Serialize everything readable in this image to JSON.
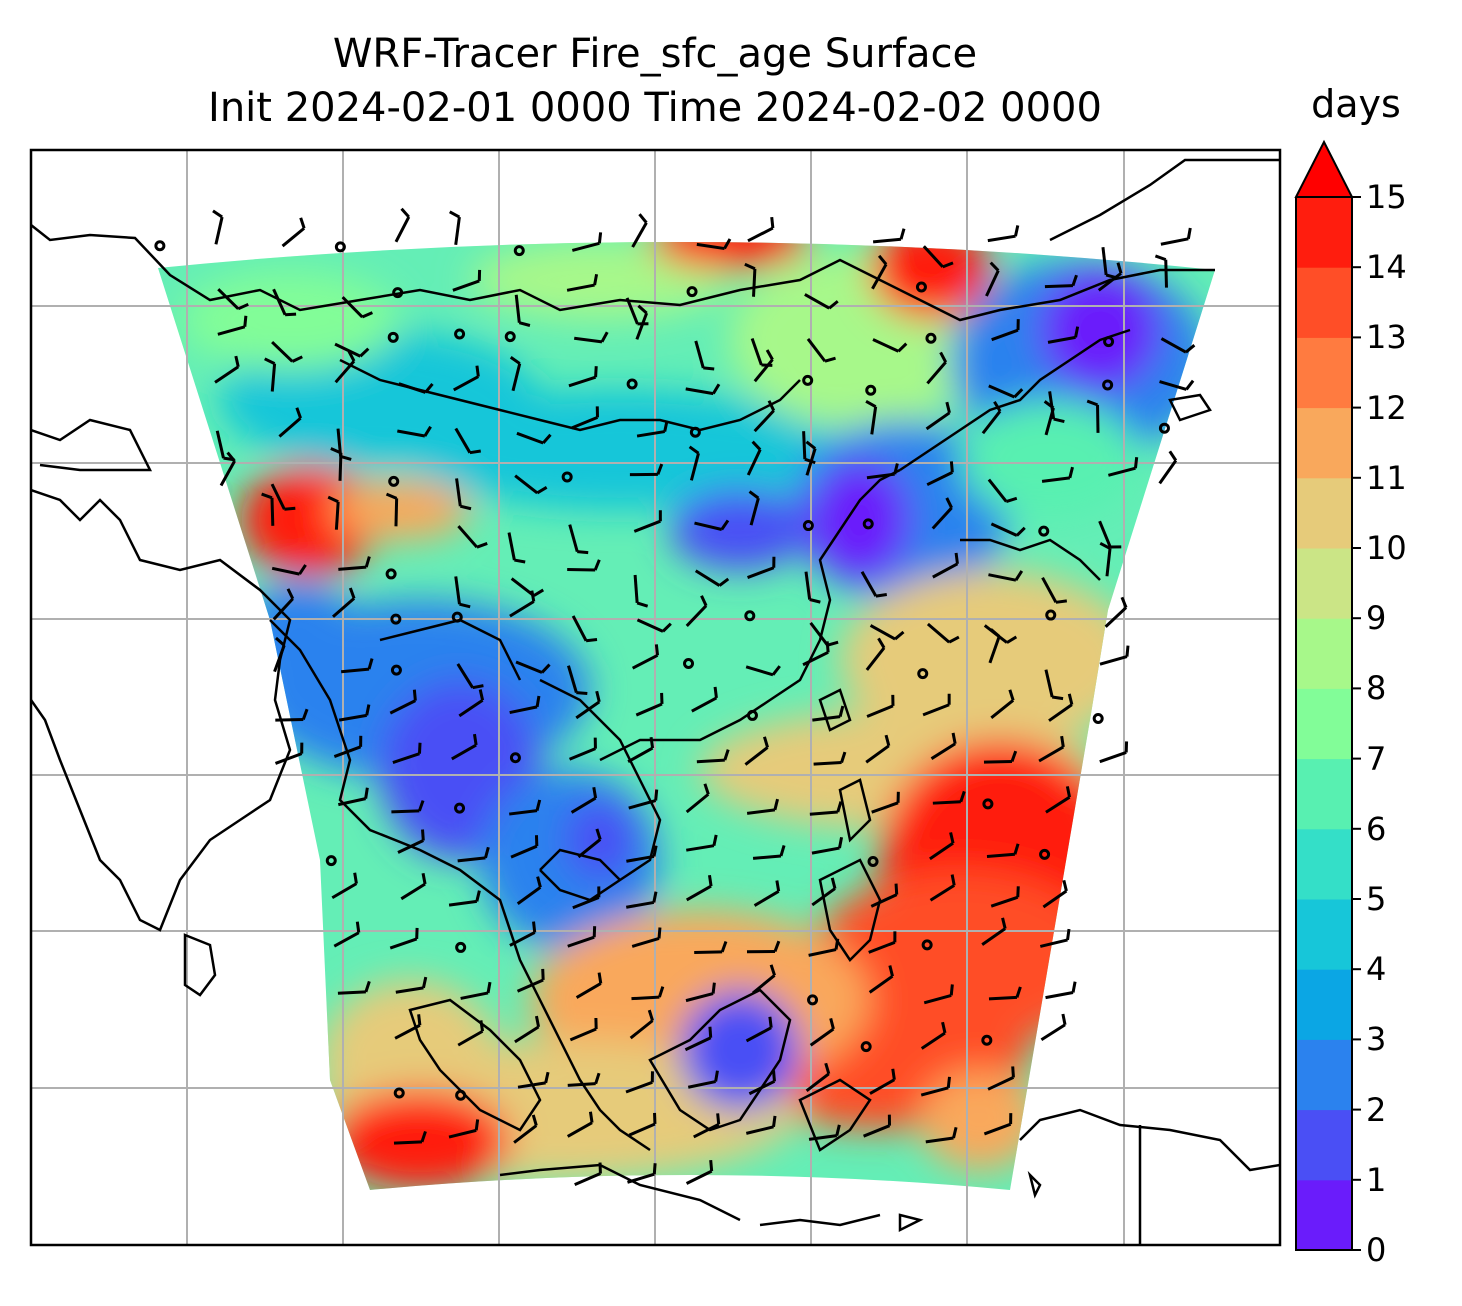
{
  "title": {
    "line1": "WRF-Tracer Fire_sfc_age Surface",
    "line2": "Init 2024-02-01 0000 Time 2024-02-02 0000"
  },
  "colorbar": {
    "unit": "days",
    "min": 0,
    "max": 15,
    "extend": "max",
    "ticks": [
      "0",
      "1",
      "2",
      "3",
      "4",
      "5",
      "6",
      "7",
      "8",
      "9",
      "10",
      "11",
      "12",
      "13",
      "14",
      "15"
    ],
    "colors": [
      "#6a1cfb",
      "#4a4ff5",
      "#2b82ee",
      "#0ba6e4",
      "#17c6d9",
      "#34dfc8",
      "#58f0b1",
      "#82fd98",
      "#a7f88a",
      "#cbe586",
      "#e6cb7a",
      "#f9a85c",
      "#ff7b40",
      "#ff4e27",
      "#ff1d0e"
    ],
    "over_color": "#ff0000"
  },
  "map": {
    "gridlines": true,
    "gridline_color": "#b0b0b0",
    "coastline_color": "#000000",
    "wind_barbs": true
  }
}
